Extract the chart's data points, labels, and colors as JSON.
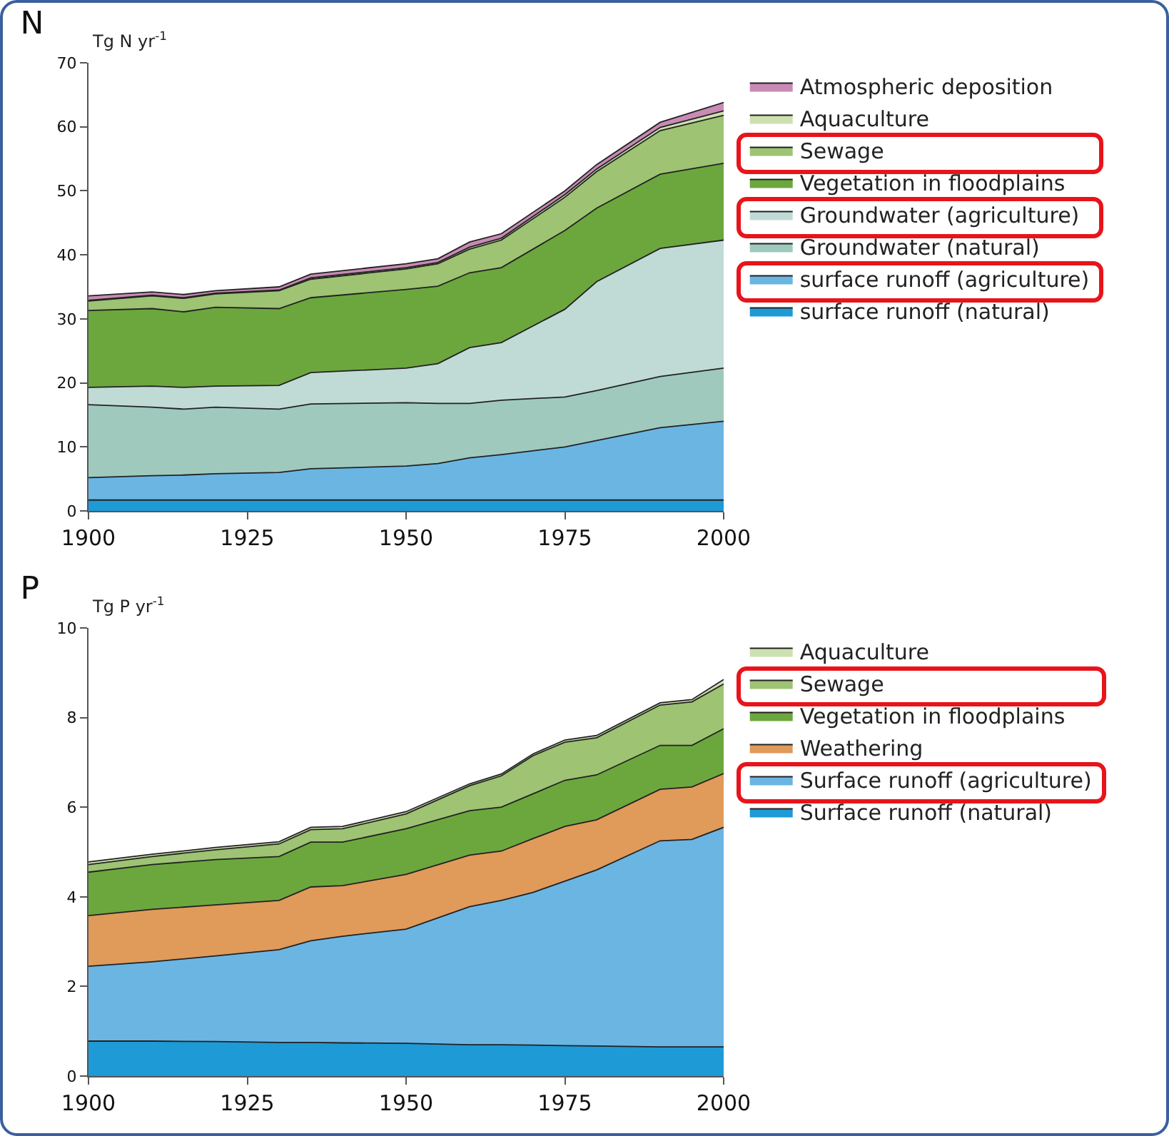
{
  "chart_data": [
    {
      "type": "area",
      "title": "N",
      "ylabel": "Tg N yr$^{-1}$",
      "stacked": true,
      "legend": "right",
      "grid": false,
      "x": [
        1900,
        1910,
        1915,
        1920,
        1930,
        1935,
        1950,
        1955,
        1960,
        1965,
        1975,
        1980,
        1990,
        2000
      ],
      "xlim": [
        1900,
        2000
      ],
      "xticks": [
        1900,
        1925,
        1950,
        1975,
        2000
      ],
      "ylim": [
        0,
        70
      ],
      "yticks": [
        0,
        10,
        20,
        30,
        40,
        50,
        60,
        70
      ],
      "series": [
        {
          "name": "surface runoff (natural)",
          "color": "#1e9ad6",
          "values": [
            1.7,
            1.7,
            1.7,
            1.7,
            1.7,
            1.7,
            1.7,
            1.7,
            1.7,
            1.7,
            1.7,
            1.7,
            1.7,
            1.7
          ]
        },
        {
          "name": "surface runoff (agriculture)",
          "color": "#6bb5e3",
          "values": [
            3.5,
            3.8,
            3.9,
            4.1,
            4.3,
            4.9,
            5.3,
            5.7,
            6.6,
            7.1,
            8.3,
            9.3,
            11.3,
            12.3
          ]
        },
        {
          "name": "Groundwater (natural)",
          "color": "#9fc9bd",
          "values": [
            11.4,
            10.7,
            10.3,
            10.4,
            9.9,
            10.1,
            9.9,
            9.4,
            8.5,
            8.5,
            7.8,
            7.8,
            8.0,
            8.3
          ]
        },
        {
          "name": "Groundwater (agriculture)",
          "color": "#c0dbd5",
          "values": [
            2.7,
            3.3,
            3.4,
            3.3,
            3.7,
            4.9,
            5.4,
            6.2,
            8.7,
            9.0,
            13.7,
            17.0,
            20.0,
            20.0
          ]
        },
        {
          "name": "Vegetation in floodplains",
          "color": "#6ca73e",
          "values": [
            12.0,
            12.1,
            11.8,
            12.3,
            12.0,
            11.7,
            12.3,
            12.1,
            11.7,
            11.7,
            12.3,
            11.5,
            11.6,
            12.0
          ]
        },
        {
          "name": "Sewage",
          "color": "#9dc373",
          "values": [
            1.5,
            2.0,
            2.1,
            2.1,
            2.8,
            2.9,
            3.2,
            3.5,
            3.7,
            4.3,
            5.2,
            5.7,
            6.8,
            7.5
          ]
        },
        {
          "name": "Aquaculture",
          "color": "#cde0b0",
          "values": [
            0.1,
            0.1,
            0.1,
            0.1,
            0.1,
            0.2,
            0.2,
            0.2,
            0.3,
            0.3,
            0.4,
            0.4,
            0.5,
            0.7
          ]
        },
        {
          "name": "Atmospheric deposition",
          "color": "#c98ab5",
          "values": [
            0.7,
            0.5,
            0.5,
            0.4,
            0.5,
            0.6,
            0.6,
            0.6,
            0.8,
            0.7,
            0.6,
            0.7,
            0.8,
            1.3
          ]
        }
      ]
    },
    {
      "type": "area",
      "title": "P",
      "ylabel": "Tg P yr$^{-1}$",
      "stacked": true,
      "legend": "right",
      "grid": false,
      "x": [
        1900,
        1910,
        1920,
        1930,
        1935,
        1940,
        1950,
        1960,
        1965,
        1970,
        1975,
        1980,
        1990,
        1995,
        2000
      ],
      "xlim": [
        1900,
        2000
      ],
      "xticks": [
        1900,
        1925,
        1950,
        1975,
        2000
      ],
      "ylim": [
        0,
        10
      ],
      "yticks": [
        0,
        2,
        4,
        6,
        8,
        10
      ],
      "series": [
        {
          "name": "Surface runoff (natural)",
          "color": "#1e9ad6",
          "values": [
            0.78,
            0.78,
            0.77,
            0.75,
            0.75,
            0.74,
            0.73,
            0.7,
            0.7,
            0.69,
            0.68,
            0.67,
            0.65,
            0.65,
            0.65
          ]
        },
        {
          "name": "Surface runoff (agriculture)",
          "color": "#6bb5e3",
          "values": [
            1.67,
            1.77,
            1.91,
            2.07,
            2.27,
            2.38,
            2.55,
            3.08,
            3.22,
            3.41,
            3.67,
            3.93,
            4.6,
            4.63,
            4.9
          ]
        },
        {
          "name": "Weathering",
          "color": "#e09a5a",
          "values": [
            1.13,
            1.17,
            1.14,
            1.1,
            1.2,
            1.13,
            1.22,
            1.15,
            1.1,
            1.2,
            1.22,
            1.12,
            1.15,
            1.17,
            1.2
          ]
        },
        {
          "name": "Vegetation in floodplains",
          "color": "#6ca73e",
          "values": [
            0.97,
            1.0,
            1.01,
            0.98,
            1.0,
            0.97,
            1.02,
            0.99,
            0.98,
            1.0,
            1.03,
            1.0,
            0.98,
            0.93,
            1.0
          ]
        },
        {
          "name": "Sewage",
          "color": "#9dc373",
          "values": [
            0.17,
            0.18,
            0.22,
            0.28,
            0.28,
            0.3,
            0.33,
            0.56,
            0.7,
            0.85,
            0.85,
            0.83,
            0.9,
            0.97,
            1.0
          ]
        },
        {
          "name": "Aquaculture",
          "color": "#cde0b0",
          "values": [
            0.06,
            0.05,
            0.05,
            0.05,
            0.05,
            0.05,
            0.05,
            0.04,
            0.04,
            0.04,
            0.05,
            0.05,
            0.05,
            0.05,
            0.1
          ]
        }
      ]
    }
  ]
}
